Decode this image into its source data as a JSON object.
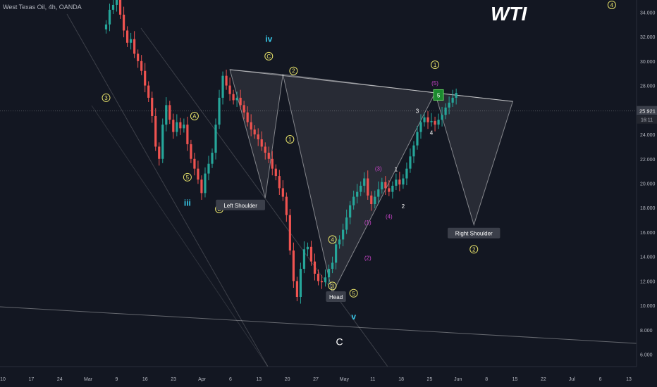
{
  "header": {
    "symbol_title": "West Texas Oil, 4h, OANDA",
    "brand": "WTI"
  },
  "colors": {
    "background": "#131722",
    "up": "#26a69a",
    "down": "#ef5350",
    "wave_yellow": "#e8e36a",
    "wave_magenta": "#cc44cc",
    "wave_cyan": "#38c8e8",
    "pattern_fill": "#ffffff",
    "label_box": "#3b3f4a",
    "price_tag": "#3b3f4a",
    "target_box": "#1b8a2e"
  },
  "chart_data": {
    "type": "candlestick",
    "title": "West Texas Oil, 4h, OANDA",
    "x_ticks": [
      "10",
      "17",
      "24",
      "Mar",
      "9",
      "16",
      "23",
      "Apr",
      "6",
      "13",
      "20",
      "27",
      "May",
      "11",
      "18",
      "25",
      "Jun",
      "8",
      "15",
      "22",
      "Jul",
      "6",
      "13"
    ],
    "y_ticks": [
      "34.000",
      "32.000",
      "30.000",
      "28.000",
      "26.000",
      "24.000",
      "22.000",
      "20.000",
      "18.000",
      "16.000",
      "14.000",
      "12.000",
      "10.000",
      "8.000",
      "6.000"
    ],
    "y_range": [
      5.0,
      35.0
    ],
    "last_price": "25.921",
    "countdown": "16:11",
    "candles": {
      "t": [
        0,
        1,
        2,
        3,
        4,
        5,
        6,
        7,
        8,
        9,
        10,
        11,
        12,
        13,
        14,
        15,
        16,
        17,
        18,
        19,
        20,
        21,
        22,
        23,
        24,
        25,
        26,
        27,
        28,
        29,
        30,
        31,
        32,
        33,
        34,
        35,
        36,
        37,
        38,
        39,
        40,
        41,
        42,
        43,
        44,
        45,
        46,
        47,
        48,
        49,
        50,
        51,
        52,
        53,
        54,
        55,
        56,
        57,
        58,
        59,
        60,
        61,
        62,
        63,
        64,
        65,
        66,
        67,
        68,
        69,
        70,
        71,
        72,
        73,
        74,
        75,
        76,
        77,
        78,
        79,
        80,
        81,
        82,
        83,
        84,
        85,
        86,
        87,
        88,
        89,
        90,
        91,
        92,
        93,
        94,
        95,
        96,
        97,
        98,
        99
      ],
      "close": [
        33.0,
        34.2,
        34.6,
        35.0,
        33.8,
        32.5,
        31.5,
        31.8,
        30.6,
        30.0,
        29.2,
        28.0,
        27.0,
        25.5,
        23.0,
        22.0,
        24.8,
        26.4,
        25.2,
        24.2,
        25.0,
        24.5,
        24.8,
        23.2,
        22.0,
        21.2,
        20.3,
        19.2,
        20.8,
        21.6,
        22.5,
        24.8,
        27.0,
        28.8,
        28.0,
        27.3,
        26.8,
        27.0,
        26.4,
        25.8,
        25.0,
        24.4,
        24.0,
        23.6,
        23.0,
        22.5,
        22.0,
        21.2,
        20.6,
        19.6,
        18.9,
        17.4,
        14.5,
        12.0,
        10.7,
        13.0,
        14.6,
        14.8,
        13.6,
        12.6,
        12.0,
        11.9,
        12.3,
        13.0,
        13.5,
        15.0,
        15.4,
        16.2,
        17.2,
        18.2,
        18.9,
        19.3,
        19.8,
        20.4,
        19.0,
        18.3,
        18.9,
        19.5,
        20.1,
        19.6,
        19.3,
        19.8,
        20.3,
        19.9,
        20.4,
        21.2,
        22.2,
        23.1,
        24.2,
        25.0,
        25.4,
        25.0,
        25.1,
        24.8,
        25.2,
        25.6,
        26.2,
        26.6,
        27.0,
        27.4
      ],
      "note": "OHLC values approximated from the picture"
    },
    "wave_labels": [
      {
        "text": "3",
        "style": "yellow-circle",
        "t": 0,
        "y": 27.0
      },
      {
        "text": "A",
        "style": "yellow-circle",
        "t": 25,
        "y": 25.5
      },
      {
        "text": "5",
        "style": "yellow-circle",
        "t": 23,
        "y": 20.5
      },
      {
        "text": "iii",
        "style": "cyan",
        "t": 23,
        "y": 18.4
      },
      {
        "text": "B",
        "style": "yellow-circle",
        "t": 32,
        "y": 17.9
      },
      {
        "text": "iv",
        "style": "cyan",
        "t": 46,
        "y": 31.8
      },
      {
        "text": "C",
        "style": "yellow-circle",
        "t": 46,
        "y": 30.4
      },
      {
        "text": "2",
        "style": "yellow-circle",
        "t": 53,
        "y": 29.2
      },
      {
        "text": "1",
        "style": "yellow-circle",
        "t": 52,
        "y": 23.6
      },
      {
        "text": "4",
        "style": "yellow-circle",
        "t": 64,
        "y": 15.4
      },
      {
        "text": "3",
        "style": "yellow-circle",
        "t": 64,
        "y": 11.6
      },
      {
        "text": "5",
        "style": "yellow-circle",
        "t": 70,
        "y": 11.0
      },
      {
        "text": "v",
        "style": "cyan",
        "t": 70,
        "y": 9.1
      },
      {
        "text": "C",
        "style": "white",
        "t": 66,
        "y": 7.0
      },
      {
        "text": "(1)",
        "style": "magenta",
        "t": 74,
        "y": 16.8
      },
      {
        "text": "(2)",
        "style": "magenta",
        "t": 74,
        "y": 13.9
      },
      {
        "text": "(3)",
        "style": "magenta",
        "t": 77,
        "y": 21.2
      },
      {
        "text": "(4)",
        "style": "magenta",
        "t": 80,
        "y": 17.3
      },
      {
        "text": "(5)",
        "style": "magenta",
        "t": 93,
        "y": 28.2
      },
      {
        "text": "1",
        "style": "white",
        "t": 82,
        "y": 21.2
      },
      {
        "text": "2",
        "style": "white",
        "t": 84,
        "y": 18.2
      },
      {
        "text": "3",
        "style": "white",
        "t": 88,
        "y": 26.0
      },
      {
        "text": "4",
        "style": "white",
        "t": 92,
        "y": 24.2
      },
      {
        "text": "5",
        "style": "target-box",
        "t": 94,
        "y": 27.2
      },
      {
        "text": "1",
        "style": "yellow-circle",
        "t": 93,
        "y": 29.7
      },
      {
        "text": "2",
        "style": "yellow-circle",
        "t": 104,
        "y": 14.6
      },
      {
        "text": "4",
        "style": "yellow-circle",
        "t": 143,
        "y": 34.6
      }
    ],
    "pattern_labels": [
      {
        "text": "Left Shoulder",
        "t": 38,
        "y": 18.2
      },
      {
        "text": "Head",
        "t": 65,
        "y": 10.7
      },
      {
        "text": "Right Shoulder",
        "t": 104,
        "y": 15.9
      }
    ],
    "neckline": {
      "from": {
        "t": 35,
        "y": 29.3
      },
      "to": {
        "t": 115,
        "y": 26.7
      }
    },
    "pattern_points": {
      "left_shoulder": [
        {
          "t": 35,
          "y": 29.3
        },
        {
          "t": 45,
          "y": 18.8
        },
        {
          "t": 50,
          "y": 28.9
        }
      ],
      "head": [
        {
          "t": 50,
          "y": 28.9
        },
        {
          "t": 64,
          "y": 11.0
        },
        {
          "t": 93,
          "y": 27.4
        }
      ],
      "right_shoulder": [
        {
          "t": 93,
          "y": 27.4
        },
        {
          "t": 104,
          "y": 16.6
        },
        {
          "t": 115,
          "y": 26.7
        }
      ]
    }
  }
}
